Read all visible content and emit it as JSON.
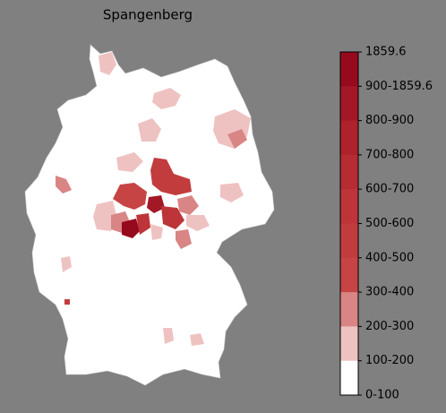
{
  "map": {
    "title": "Spangenberg",
    "colorbar": {
      "labels": [
        "1859.6",
        "900-1859.6",
        "800-900",
        "700-800",
        "600-700",
        "500-600",
        "400-500",
        "300-400",
        "200-300",
        "100-200",
        "0-100"
      ],
      "colors": [
        "#960a1e",
        "#a21826",
        "#ad222c",
        "#b62c33",
        "#bd3539",
        "#c23c3e",
        "#c74444",
        "#d98585",
        "#efc2c2",
        "#ffffff"
      ]
    }
  }
}
